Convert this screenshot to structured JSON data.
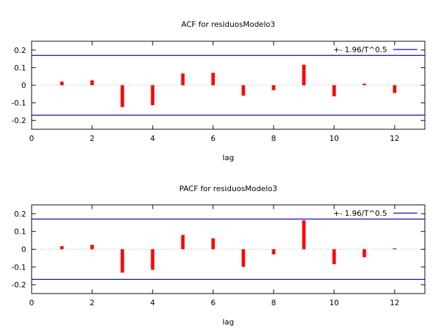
{
  "chart_data": [
    {
      "type": "bar",
      "title": "ACF for residuosModelo3",
      "xlabel": "lag",
      "ylabel": "",
      "xlim": [
        0,
        13
      ],
      "ylim": [
        -0.25,
        0.25
      ],
      "xticks": [
        0,
        2,
        4,
        6,
        8,
        10,
        12
      ],
      "yticks": [
        0.2,
        0.1,
        0,
        -0.1,
        -0.2
      ],
      "ytick_labels": [
        "0.2",
        "0.1",
        "0",
        "-0.1",
        "-0.2"
      ],
      "x": [
        1,
        2,
        3,
        4,
        5,
        6,
        7,
        8,
        9,
        10,
        11,
        12
      ],
      "values": [
        0.021,
        0.028,
        -0.124,
        -0.113,
        0.067,
        0.071,
        -0.059,
        -0.028,
        0.117,
        -0.063,
        0.009,
        -0.044
      ],
      "bar_color": "#ff0000",
      "confidence_band": 0.17,
      "band_color": "#0000cc",
      "legend": {
        "label": "+- 1.96/T^0.5",
        "position": "top-right"
      }
    },
    {
      "type": "bar",
      "title": "PACF for residuosModelo3",
      "xlabel": "lag",
      "ylabel": "",
      "xlim": [
        0,
        13
      ],
      "ylim": [
        -0.25,
        0.25
      ],
      "xticks": [
        0,
        2,
        4,
        6,
        8,
        10,
        12
      ],
      "yticks": [
        0.2,
        0.1,
        0,
        -0.1,
        -0.2
      ],
      "ytick_labels": [
        "0.2",
        "0.1",
        "0",
        "-0.1",
        "-0.2"
      ],
      "x": [
        1,
        2,
        3,
        4,
        5,
        6,
        7,
        8,
        9,
        10,
        11,
        12
      ],
      "values": [
        0.017,
        0.025,
        -0.132,
        -0.116,
        0.08,
        0.061,
        -0.099,
        -0.029,
        0.163,
        -0.084,
        -0.045,
        0.005
      ],
      "bar_color": "#ff0000",
      "confidence_band": 0.17,
      "band_color": "#0000cc",
      "legend": {
        "label": "+- 1.96/T^0.5",
        "position": "top-right"
      }
    }
  ]
}
